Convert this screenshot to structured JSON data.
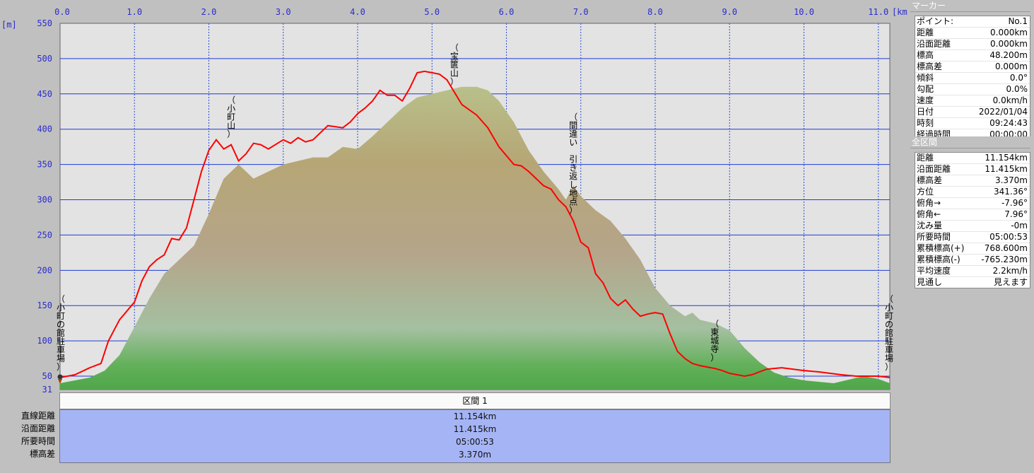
{
  "chart_data": {
    "type": "area",
    "x_unit": "[km]",
    "y_unit": "[m]",
    "xlim": [
      0,
      11.154
    ],
    "ylim": [
      31,
      550
    ],
    "x_ticks": [
      "0.0",
      "1.0",
      "2.0",
      "3.0",
      "4.0",
      "5.0",
      "6.0",
      "7.0",
      "8.0",
      "9.0",
      "10.0",
      "11.0"
    ],
    "y_ticks": [
      "550",
      "500",
      "450",
      "400",
      "350",
      "300",
      "250",
      "200",
      "150",
      "100",
      "50",
      "31"
    ],
    "grid": true,
    "series": [
      {
        "color": "#ff0000",
        "x": [
          0,
          0.2,
          0.4,
          0.55,
          0.65,
          0.8,
          1.0,
          1.1,
          1.2,
          1.3,
          1.4,
          1.5,
          1.6,
          1.7,
          1.8,
          1.9,
          2.0,
          2.1,
          2.2,
          2.3,
          2.4,
          2.5,
          2.6,
          2.7,
          2.8,
          3.0,
          3.1,
          3.2,
          3.3,
          3.4,
          3.6,
          3.8,
          3.9,
          4.0,
          4.1,
          4.2,
          4.3,
          4.4,
          4.5,
          4.6,
          4.7,
          4.8,
          4.9,
          5.0,
          5.1,
          5.2,
          5.4,
          5.6,
          5.75,
          5.9,
          6.1,
          6.2,
          6.3,
          6.4,
          6.5,
          6.6,
          6.7,
          6.8,
          6.9,
          7.0,
          7.1,
          7.2,
          7.3,
          7.4,
          7.5,
          7.6,
          7.7,
          7.8,
          7.9,
          8.0,
          8.1,
          8.2,
          8.3,
          8.4,
          8.5,
          8.6,
          8.7,
          8.8,
          8.9,
          9.0,
          9.1,
          9.2,
          9.3,
          9.4,
          9.5,
          9.7,
          10.0,
          10.2,
          10.5,
          10.7,
          11.0,
          11.154
        ],
        "y": [
          48,
          52,
          62,
          68,
          100,
          130,
          155,
          185,
          205,
          215,
          222,
          245,
          243,
          260,
          300,
          340,
          370,
          385,
          372,
          378,
          355,
          365,
          380,
          378,
          372,
          385,
          380,
          388,
          382,
          385,
          405,
          402,
          410,
          422,
          430,
          440,
          455,
          448,
          448,
          440,
          458,
          480,
          482,
          480,
          478,
          470,
          435,
          420,
          402,
          375,
          350,
          348,
          340,
          330,
          320,
          315,
          300,
          290,
          270,
          240,
          232,
          195,
          182,
          160,
          150,
          158,
          145,
          135,
          138,
          140,
          138,
          110,
          85,
          75,
          68,
          65,
          63,
          61,
          58,
          54,
          52,
          50,
          52,
          56,
          60,
          62,
          58,
          56,
          52,
          50,
          50,
          48
        ],
        "name": ""
      }
    ],
    "ground_series": {
      "x": [
        0,
        0.4,
        0.6,
        0.8,
        1.0,
        1.2,
        1.4,
        1.6,
        1.8,
        2.0,
        2.2,
        2.4,
        2.6,
        2.8,
        3.0,
        3.2,
        3.4,
        3.6,
        3.8,
        4.0,
        4.2,
        4.4,
        4.6,
        4.8,
        5.0,
        5.2,
        5.4,
        5.6,
        5.75,
        5.9,
        6.1,
        6.3,
        6.5,
        6.7,
        6.8,
        6.9,
        7.0,
        7.2,
        7.4,
        7.6,
        7.8,
        8.0,
        8.2,
        8.4,
        8.5,
        8.6,
        8.8,
        9.0,
        9.2,
        9.4,
        9.6,
        9.8,
        10.0,
        10.2,
        10.4,
        10.6,
        10.8,
        11.0,
        11.154
      ],
      "y": [
        40,
        48,
        58,
        80,
        120,
        160,
        195,
        215,
        235,
        280,
        330,
        350,
        330,
        340,
        350,
        355,
        360,
        360,
        375,
        372,
        390,
        410,
        430,
        445,
        450,
        455,
        460,
        460,
        455,
        440,
        410,
        370,
        340,
        315,
        300,
        320,
        305,
        285,
        270,
        245,
        215,
        175,
        150,
        135,
        140,
        130,
        125,
        115,
        90,
        70,
        55,
        48,
        44,
        42,
        40,
        45,
        50,
        46,
        40
      ]
    },
    "annotations": [
      {
        "text": "（小町の館駐車場）",
        "x": 0
      },
      {
        "text": "（小町山）",
        "x": 2.3
      },
      {
        "text": "（宝篋山）",
        "x": 5.3
      },
      {
        "text": "（間違い　引き返し地点）",
        "x": 6.9
      },
      {
        "text": "（東城寺）",
        "x": 8.8
      },
      {
        "text": "（小町の館駐車場）",
        "x": 11.154
      }
    ]
  },
  "marker_panel": {
    "title": "マーカー",
    "rows": [
      {
        "label": "ポイント:",
        "value": "No.1"
      },
      {
        "label": "距離",
        "value": "0.000km"
      },
      {
        "label": "沿面距離",
        "value": "0.000km"
      },
      {
        "label": "標高",
        "value": "48.200m"
      },
      {
        "label": "標高差",
        "value": "0.000m"
      },
      {
        "label": "傾斜",
        "value": "0.0°"
      },
      {
        "label": "勾配",
        "value": "0.0%"
      },
      {
        "label": "速度",
        "value": "0.0km/h"
      },
      {
        "label": "日付",
        "value": "2022/01/04"
      },
      {
        "label": "時刻",
        "value": "09:24:43"
      },
      {
        "label": "経過時間",
        "value": "00:00:00"
      }
    ]
  },
  "total_panel": {
    "title": "全区間",
    "rows": [
      {
        "label": "距離",
        "value": "11.154km"
      },
      {
        "label": "沿面距離",
        "value": "11.415km"
      },
      {
        "label": "標高差",
        "value": "3.370m"
      },
      {
        "label": "方位",
        "value": "341.36°"
      },
      {
        "label": "俯角→",
        "value": "-7.96°"
      },
      {
        "label": "俯角←",
        "value": "7.96°"
      },
      {
        "label": "沈み量",
        "value": "-0m"
      },
      {
        "label": "所要時間",
        "value": "05:00:53"
      },
      {
        "label": "累積標高(+)",
        "value": "768.600m"
      },
      {
        "label": "累積標高(-)",
        "value": "-765.230m"
      },
      {
        "label": "平均速度",
        "value": "2.2km/h"
      },
      {
        "label": "見通し",
        "value": "見えます"
      }
    ]
  },
  "segment": {
    "header": "区間 1",
    "labels": [
      "直線距離",
      "沿面距離",
      "所要時間",
      "標高差"
    ],
    "values": [
      "11.154km",
      "11.415km",
      "05:00:53",
      "3.370m"
    ]
  }
}
